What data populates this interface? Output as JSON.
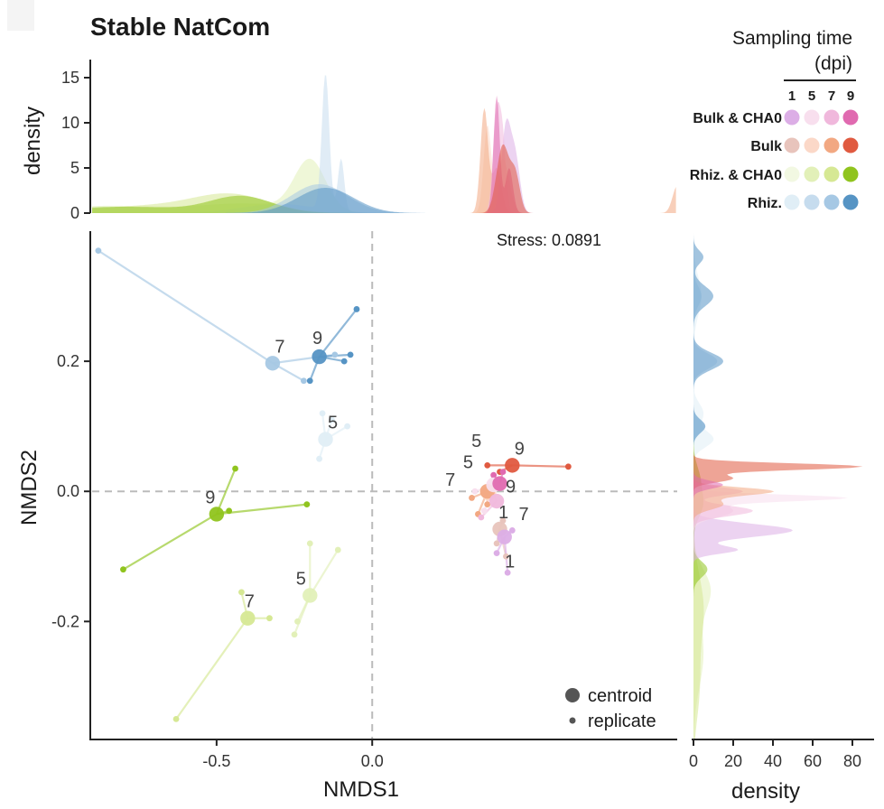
{
  "chart_data": {
    "type": "scatter",
    "title": "Stable NatCom",
    "xlabel": "NMDS1",
    "ylabel": "NMDS2",
    "xlim": [
      -0.9,
      0.98
    ],
    "ylim": [
      -0.38,
      0.4
    ],
    "x_ticks": [
      -0.5,
      0.0
    ],
    "y_ticks": [
      0.2,
      0.0,
      -0.2
    ],
    "x_tick_labels": [
      "-0.5",
      "0.0"
    ],
    "y_tick_labels": [
      "0.2",
      "0.0",
      "-0.2"
    ],
    "stress_label": "Stress: 0.0891",
    "reference_lines": {
      "x": 0,
      "y": 0
    },
    "legend": {
      "title_line1": "Sampling time",
      "title_line2": "(dpi)",
      "times": [
        "1",
        "5",
        "7",
        "9"
      ],
      "groups": [
        {
          "name": "Bulk & CHA0",
          "colors": [
            "#dcaee6",
            "#f8dfee",
            "#f0b8dc",
            "#e06ab0"
          ]
        },
        {
          "name": "Bulk",
          "colors": [
            "#e8c4bc",
            "#fbd8c8",
            "#f2a882",
            "#e05a40"
          ]
        },
        {
          "name": "Rhiz. & CHA0",
          "colors": [
            "#f2f8e2",
            "#e2f0b8",
            "#d6e894",
            "#90c41e"
          ]
        },
        {
          "name": "Rhiz.",
          "colors": [
            "#e0eef6",
            "#c6dcee",
            "#a6c8e4",
            "#5694c4"
          ]
        }
      ]
    },
    "size_legend": {
      "centroid_label": "centroid",
      "replicate_label": "replicate"
    },
    "top_density": {
      "ylabel": "density",
      "ylim": [
        0,
        17
      ],
      "y_ticks": [
        0,
        5,
        10,
        15
      ],
      "y_tick_labels": [
        "0",
        "5",
        "10",
        "15"
      ]
    },
    "right_density": {
      "xlabel": "density",
      "xlim": [
        0,
        90
      ],
      "x_ticks": [
        0,
        20,
        40,
        60,
        80
      ],
      "x_tick_labels": [
        "0",
        "20",
        "40",
        "60",
        "80"
      ]
    },
    "centroids": [
      {
        "id": "rz5",
        "label": "5",
        "x": -0.15,
        "y": 0.08,
        "color": "#e0eef6"
      },
      {
        "id": "rz7",
        "label": "7",
        "x": -0.32,
        "y": 0.197,
        "color": "#a6c8e4"
      },
      {
        "id": "rz9",
        "label": "9",
        "x": -0.17,
        "y": 0.207,
        "color": "#5694c4"
      },
      {
        "id": "rc5",
        "label": "5",
        "x": -0.2,
        "y": -0.16,
        "color": "#e2f0b8"
      },
      {
        "id": "rc7",
        "label": "7",
        "x": -0.4,
        "y": -0.195,
        "color": "#d6e894"
      },
      {
        "id": "rc9",
        "label": "9",
        "x": -0.5,
        "y": -0.035,
        "color": "#90c41e"
      },
      {
        "id": "b1",
        "label": "1",
        "x": 0.41,
        "y": -0.058,
        "color": "#e8c4bc"
      },
      {
        "id": "b5",
        "label": "5",
        "x": 0.375,
        "y": -0.003,
        "color": "#fbd8c8"
      },
      {
        "id": "b7",
        "label": "7",
        "x": 0.37,
        "y": 0.0,
        "color": "#f2a882"
      },
      {
        "id": "b9",
        "label": "9",
        "x": 0.45,
        "y": 0.04,
        "color": "#e05a40"
      },
      {
        "id": "bc1",
        "label": "1",
        "x": 0.425,
        "y": -0.07,
        "color": "#dcaee6"
      },
      {
        "id": "bc5",
        "label": "5",
        "x": 0.39,
        "y": 0.01,
        "color": "#f8dfee"
      },
      {
        "id": "bc7",
        "label": "7",
        "x": 0.4,
        "y": -0.015,
        "color": "#f0b8dc"
      },
      {
        "id": "bc9",
        "label": "9",
        "x": 0.41,
        "y": 0.012,
        "color": "#e06ab0"
      }
    ],
    "replicates": [
      {
        "group": "rz7",
        "x": -0.88,
        "y": 0.37
      },
      {
        "group": "rz7",
        "x": -0.22,
        "y": 0.17
      },
      {
        "group": "rz7",
        "x": -0.12,
        "y": 0.21
      },
      {
        "group": "rz9",
        "x": -0.05,
        "y": 0.28
      },
      {
        "group": "rz9",
        "x": -0.09,
        "y": 0.2
      },
      {
        "group": "rz9",
        "x": -0.2,
        "y": 0.17
      },
      {
        "group": "rz9",
        "x": -0.07,
        "y": 0.21
      },
      {
        "group": "rz5",
        "x": -0.16,
        "y": 0.12
      },
      {
        "group": "rz5",
        "x": -0.13,
        "y": 0.11
      },
      {
        "group": "rz5",
        "x": -0.08,
        "y": 0.1
      },
      {
        "group": "rz5",
        "x": -0.17,
        "y": 0.05
      },
      {
        "group": "rc9",
        "x": -0.8,
        "y": -0.12
      },
      {
        "group": "rc9",
        "x": -0.44,
        "y": 0.035
      },
      {
        "group": "rc9",
        "x": -0.46,
        "y": -0.03
      },
      {
        "group": "rc9",
        "x": -0.21,
        "y": -0.02
      },
      {
        "group": "rc5",
        "x": -0.2,
        "y": -0.08
      },
      {
        "group": "rc5",
        "x": -0.11,
        "y": -0.09
      },
      {
        "group": "rc5",
        "x": -0.24,
        "y": -0.2
      },
      {
        "group": "rc5",
        "x": -0.25,
        "y": -0.22
      },
      {
        "group": "rc7",
        "x": -0.42,
        "y": -0.155
      },
      {
        "group": "rc7",
        "x": -0.33,
        "y": -0.195
      },
      {
        "group": "rc7",
        "x": -0.63,
        "y": -0.35
      },
      {
        "group": "b9",
        "x": 0.63,
        "y": 0.038
      },
      {
        "group": "b9",
        "x": 0.37,
        "y": 0.04
      },
      {
        "group": "b9",
        "x": 0.41,
        "y": 0.03
      },
      {
        "group": "b7",
        "x": 0.32,
        "y": -0.01
      },
      {
        "group": "b7",
        "x": 0.34,
        "y": -0.035
      },
      {
        "group": "b7",
        "x": 0.37,
        "y": -0.02
      },
      {
        "group": "b1",
        "x": 0.4,
        "y": -0.08
      },
      {
        "group": "b1",
        "x": 0.43,
        "y": -0.1
      },
      {
        "group": "b1",
        "x": 0.42,
        "y": -0.045
      },
      {
        "group": "bc1",
        "x": 0.4,
        "y": -0.095
      },
      {
        "group": "bc1",
        "x": 0.435,
        "y": -0.125
      },
      {
        "group": "bc1",
        "x": 0.45,
        "y": -0.06
      },
      {
        "group": "bc9",
        "x": 0.39,
        "y": 0.025
      },
      {
        "group": "bc9",
        "x": 0.42,
        "y": 0.03
      },
      {
        "group": "bc5",
        "x": 0.33,
        "y": 0.0
      },
      {
        "group": "bc5",
        "x": 0.36,
        "y": -0.03
      },
      {
        "group": "bc7",
        "x": 0.35,
        "y": -0.04
      },
      {
        "group": "bc7",
        "x": 0.38,
        "y": 0.005
      }
    ]
  }
}
